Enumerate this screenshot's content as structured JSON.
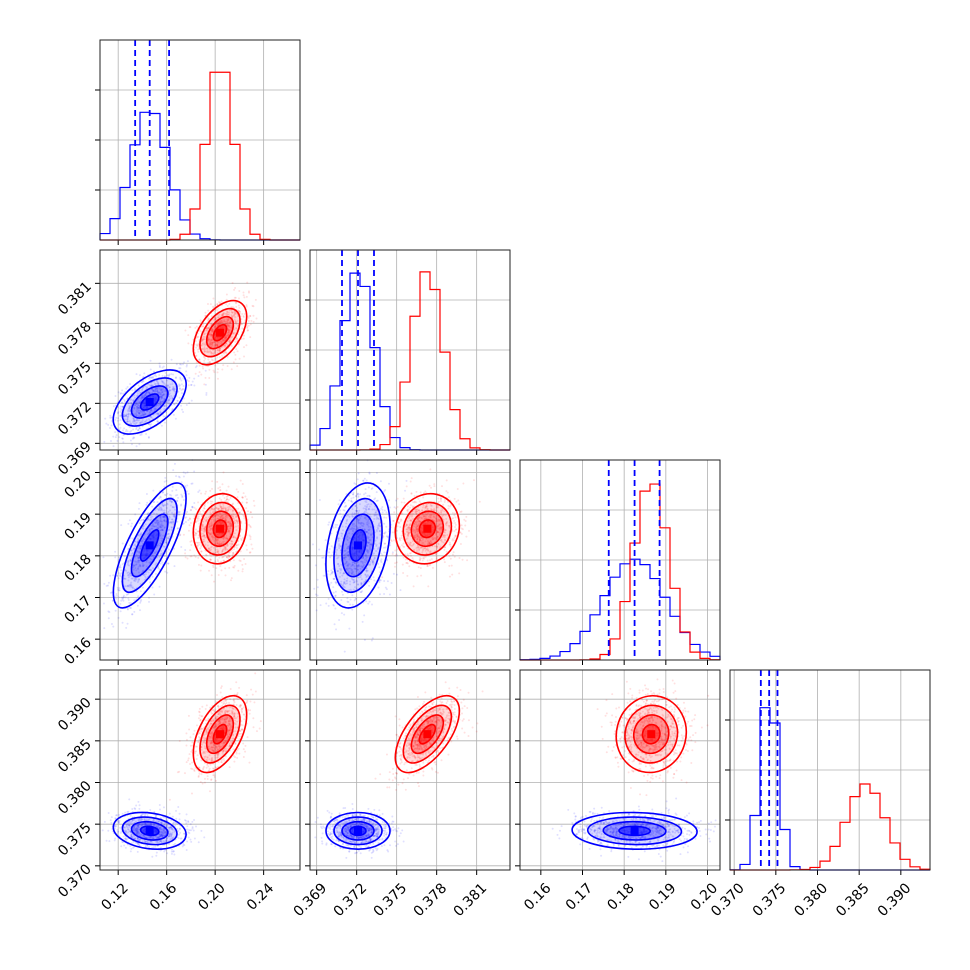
{
  "chart_data": {
    "type": "corner",
    "grid": true,
    "colors": {
      "series_a": "#0000ff",
      "series_b": "#ff0000"
    },
    "parameters": [
      {
        "index": 0,
        "range": [
          0.105,
          0.27
        ],
        "ticks": [
          0.12,
          0.16,
          0.2,
          0.24
        ],
        "tick_labels": [
          "0.12",
          "0.16",
          "0.20",
          "0.24"
        ]
      },
      {
        "index": 1,
        "range": [
          0.3685,
          0.3835
        ],
        "ticks": [
          0.369,
          0.372,
          0.375,
          0.378,
          0.381
        ],
        "tick_labels": [
          "0.369",
          "0.372",
          "0.375",
          "0.378",
          "0.381"
        ]
      },
      {
        "index": 2,
        "range": [
          0.155,
          0.203
        ],
        "ticks": [
          0.16,
          0.17,
          0.18,
          0.19,
          0.2
        ],
        "tick_labels": [
          "0.16",
          "0.17",
          "0.18",
          "0.19",
          "0.20"
        ]
      },
      {
        "index": 3,
        "range": [
          0.3695,
          0.3935
        ],
        "ticks": [
          0.37,
          0.375,
          0.38,
          0.385,
          0.39
        ],
        "tick_labels": [
          "0.370",
          "0.375",
          "0.380",
          "0.385",
          "0.390"
        ]
      }
    ],
    "series": [
      {
        "key": "series_a",
        "mean": [
          0.146,
          0.3721,
          0.1825,
          0.3742
        ],
        "sigma": [
          0.015,
          0.0012,
          0.0075,
          0.0011
        ],
        "quantiles": [
          [
            0.134,
            0.146,
            0.162
          ],
          [
            0.3709,
            0.3721,
            0.3733
          ],
          [
            0.1763,
            0.1825,
            0.1885
          ],
          [
            0.3732,
            0.3742,
            0.3752
          ]
        ],
        "correlations": [
          [
            1,
            0.55,
            0.75,
            -0.2
          ],
          [
            0.55,
            1,
            0.3,
            0.0
          ],
          [
            0.75,
            0.3,
            1,
            -0.05
          ],
          [
            -0.2,
            0.0,
            -0.05,
            1
          ]
        ]
      },
      {
        "key": "series_b",
        "mean": [
          0.204,
          0.3773,
          0.1865,
          0.3858
        ],
        "sigma": [
          0.011,
          0.0012,
          0.0042,
          0.0023
        ],
        "correlations": [
          [
            1,
            0.5,
            0.1,
            0.5
          ],
          [
            0.5,
            1,
            0.1,
            0.6
          ],
          [
            0.1,
            0.1,
            1,
            0.05
          ],
          [
            0.5,
            0.6,
            0.05,
            1
          ]
        ]
      }
    ]
  }
}
